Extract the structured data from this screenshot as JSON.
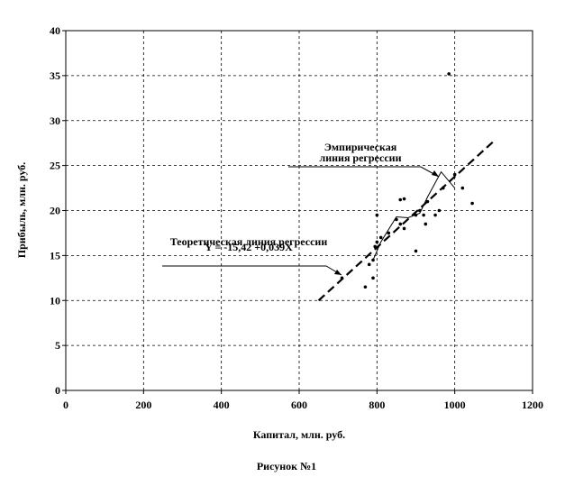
{
  "chart_data": {
    "type": "scatter",
    "xlabel": "Капитал, млн. руб.",
    "ylabel": "Прибыль, млн. руб.",
    "caption": "Рисунок №1",
    "xlim": [
      0,
      1200
    ],
    "xticks": [
      0,
      200,
      400,
      600,
      800,
      1000,
      1200
    ],
    "ylim": [
      0,
      40
    ],
    "yticks": [
      0,
      5,
      10,
      15,
      20,
      25,
      30,
      35,
      40
    ],
    "grid": true,
    "series": [
      {
        "kind": "points",
        "color": "#000000",
        "x": [
          710,
          770,
          780,
          790,
          790,
          795,
          800,
          800,
          810,
          830,
          850,
          860,
          860,
          870,
          870,
          900,
          900,
          910,
          920,
          925,
          930,
          950,
          960,
          970,
          985,
          1000,
          1020,
          1045
        ],
        "values": [
          12.5,
          11.5,
          14,
          12.5,
          14.5,
          16,
          16.5,
          19.5,
          17,
          17.5,
          19,
          21.2,
          18.5,
          21.3,
          18,
          15.5,
          19.5,
          20,
          19.5,
          18.5,
          21,
          19.5,
          20,
          22.5,
          35.2,
          24,
          22.5,
          20.8
        ]
      },
      {
        "kind": "line",
        "color": "#000000",
        "x": [
          790,
          810,
          850,
          880,
          910,
          930,
          965,
          1000
        ],
        "values": [
          14.5,
          16.5,
          19.3,
          19.2,
          19.7,
          21.5,
          24.3,
          22.5
        ]
      },
      {
        "kind": "dashed",
        "color": "#000000",
        "x": [
          650,
          1100
        ],
        "values": [
          10,
          27.7
        ]
      }
    ],
    "annotations": [
      "Эмпирическая линия регрессии",
      "Теоретическая линия регрессии",
      "Y = -15,42 +0,039X"
    ]
  }
}
